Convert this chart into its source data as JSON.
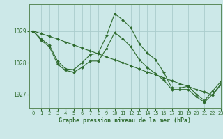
{
  "title": "Graphe pression niveau de la mer (hPa)",
  "bg_color": "#cce8e8",
  "grid_color": "#aacccc",
  "line_color": "#2d6a2d",
  "marker_color": "#2d6a2d",
  "xlim": [
    -0.5,
    23
  ],
  "ylim": [
    1026.55,
    1029.85
  ],
  "yticks": [
    1027,
    1028,
    1029
  ],
  "xticks": [
    0,
    1,
    2,
    3,
    4,
    5,
    6,
    7,
    8,
    9,
    10,
    11,
    12,
    13,
    14,
    15,
    16,
    17,
    18,
    19,
    20,
    21,
    22,
    23
  ],
  "series": [
    {
      "x": [
        0,
        1,
        2,
        3,
        4,
        5,
        6,
        7,
        8,
        9,
        10,
        11,
        12,
        13,
        14,
        15,
        16,
        17,
        18,
        19,
        20,
        21,
        22,
        23
      ],
      "y": [
        1029.0,
        1028.75,
        1028.55,
        1028.05,
        1027.8,
        1027.78,
        1028.0,
        1028.25,
        1028.3,
        1028.85,
        1029.55,
        1029.35,
        1029.1,
        1028.6,
        1028.3,
        1028.1,
        1027.7,
        1027.2,
        1027.2,
        1027.25,
        1027.0,
        1026.8,
        1027.1,
        1027.4
      ]
    },
    {
      "x": [
        0,
        1,
        2,
        3,
        4,
        5,
        6,
        7,
        8,
        9,
        10,
        11,
        12,
        13,
        14,
        15,
        16,
        17,
        18,
        19,
        20,
        21,
        22,
        23
      ],
      "y": [
        1029.0,
        1028.7,
        1028.5,
        1027.95,
        1027.75,
        1027.7,
        1027.85,
        1028.05,
        1028.05,
        1028.45,
        1028.95,
        1028.75,
        1028.5,
        1028.1,
        1027.85,
        1027.65,
        1027.45,
        1027.15,
        1027.15,
        1027.15,
        1026.92,
        1026.75,
        1027.0,
        1027.32
      ]
    },
    {
      "x": [
        0,
        1,
        2,
        3,
        4,
        5,
        6,
        7,
        8,
        9,
        10,
        11,
        12,
        13,
        14,
        15,
        16,
        17,
        18,
        19,
        20,
        21,
        22,
        23
      ],
      "y": [
        1029.0,
        1028.92,
        1028.83,
        1028.75,
        1028.65,
        1028.56,
        1028.46,
        1028.37,
        1028.28,
        1028.18,
        1028.09,
        1028.0,
        1027.9,
        1027.8,
        1027.7,
        1027.62,
        1027.52,
        1027.43,
        1027.33,
        1027.25,
        1027.15,
        1027.07,
        1026.97,
        1027.3
      ]
    }
  ]
}
